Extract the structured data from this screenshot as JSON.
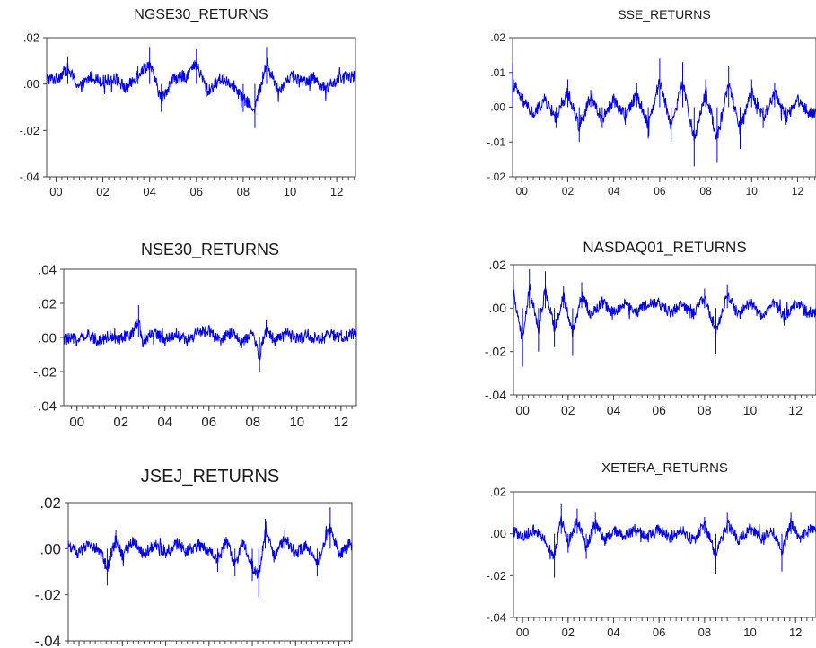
{
  "chart_data": [
    {
      "type": "line",
      "title": "NGSE30_RETURNS",
      "xlabel": "",
      "ylabel": "",
      "x_range": [
        1999.6,
        2012.8
      ],
      "ylim": [
        -0.04,
        0.02
      ],
      "x_ticks": [
        {
          "x": 2000,
          "label": "00"
        },
        {
          "x": 2002,
          "label": "02"
        },
        {
          "x": 2004,
          "label": "04"
        },
        {
          "x": 2006,
          "label": "06"
        },
        {
          "x": 2008,
          "label": "08"
        },
        {
          "x": 2010,
          "label": "10"
        },
        {
          "x": 2012,
          "label": "12"
        }
      ],
      "y_ticks": [
        {
          "y": 0.02,
          "label": ".02"
        },
        {
          "y": 0.0,
          "label": ".00"
        },
        {
          "y": -0.02,
          "label": "-.02"
        },
        {
          "y": -0.04,
          "label": "-.04"
        }
      ],
      "grid": false,
      "line_color": "#0000ee",
      "series": [
        {
          "x": [
            2000.0,
            2000.5,
            2001.0,
            2001.5,
            2002.0,
            2002.5,
            2003.0,
            2003.5,
            2004.0,
            2004.5,
            2005.0,
            2005.5,
            2006.0,
            2006.5,
            2007.0,
            2007.5,
            2008.0,
            2008.5,
            2009.0,
            2009.5,
            2010.0,
            2010.5,
            2011.0,
            2011.5,
            2012.0,
            2012.5
          ],
          "y": [
            0.004,
            0.012,
            -0.003,
            0.006,
            0.002,
            0.005,
            -0.004,
            0.008,
            0.016,
            -0.012,
            0.004,
            0.006,
            0.015,
            -0.006,
            0.004,
            0.001,
            -0.012,
            -0.019,
            0.016,
            -0.005,
            0.006,
            0.002,
            0.005,
            -0.004,
            0.003,
            0.006
          ]
        }
      ]
    },
    {
      "type": "line",
      "title": "SSE_RETURNS",
      "xlabel": "",
      "ylabel": "",
      "x_range": [
        1999.6,
        2012.8
      ],
      "ylim": [
        -0.02,
        0.02
      ],
      "x_ticks": [
        {
          "x": 2000,
          "label": "00"
        },
        {
          "x": 2002,
          "label": "02"
        },
        {
          "x": 2004,
          "label": "04"
        },
        {
          "x": 2006,
          "label": "06"
        },
        {
          "x": 2008,
          "label": "08"
        },
        {
          "x": 2010,
          "label": "10"
        },
        {
          "x": 2012,
          "label": "12"
        }
      ],
      "y_ticks": [
        {
          "y": 0.02,
          "label": ".02"
        },
        {
          "y": 0.01,
          "label": ".01"
        },
        {
          "y": 0.0,
          "label": ".00"
        },
        {
          "y": -0.01,
          "label": "-.01"
        },
        {
          "y": -0.02,
          "label": "-.02"
        }
      ],
      "grid": false,
      "line_color": "#0000ee",
      "series": [
        {
          "x": [
            1999.6,
            2000.0,
            2000.5,
            2001.0,
            2001.5,
            2002.0,
            2002.5,
            2003.0,
            2003.5,
            2004.0,
            2004.5,
            2005.0,
            2005.5,
            2006.0,
            2006.5,
            2007.0,
            2007.5,
            2008.0,
            2008.5,
            2009.0,
            2009.5,
            2010.0,
            2010.5,
            2011.0,
            2011.5,
            2012.0,
            2012.5
          ],
          "y": [
            0.013,
            0.004,
            -0.004,
            0.004,
            -0.006,
            0.008,
            -0.01,
            0.005,
            -0.006,
            0.004,
            -0.005,
            0.007,
            -0.009,
            0.014,
            -0.01,
            0.013,
            -0.017,
            0.008,
            -0.016,
            0.012,
            -0.012,
            0.008,
            -0.006,
            0.007,
            -0.005,
            0.004,
            -0.003
          ]
        }
      ]
    },
    {
      "type": "line",
      "title": "NSE30_RETURNS",
      "xlabel": "",
      "ylabel": "",
      "x_range": [
        1999.4,
        2012.7
      ],
      "ylim": [
        -0.04,
        0.04
      ],
      "x_ticks": [
        {
          "x": 2000,
          "label": "00"
        },
        {
          "x": 2002,
          "label": "02"
        },
        {
          "x": 2004,
          "label": "04"
        },
        {
          "x": 2006,
          "label": "06"
        },
        {
          "x": 2008,
          "label": "08"
        },
        {
          "x": 2010,
          "label": "10"
        },
        {
          "x": 2012,
          "label": "12"
        }
      ],
      "y_ticks": [
        {
          "y": 0.04,
          "label": ".04"
        },
        {
          "y": 0.02,
          "label": ".02"
        },
        {
          "y": 0.0,
          "label": ".00"
        },
        {
          "y": -0.02,
          "label": "-.02"
        },
        {
          "y": -0.04,
          "label": "-.04"
        }
      ],
      "grid": false,
      "line_color": "#0000ee",
      "series": [
        {
          "x": [
            2000.0,
            2000.5,
            2001.0,
            2001.5,
            2002.0,
            2002.5,
            2002.8,
            2003.0,
            2003.5,
            2004.0,
            2004.5,
            2005.0,
            2005.5,
            2006.0,
            2006.5,
            2007.0,
            2007.5,
            2008.0,
            2008.3,
            2008.6,
            2009.0,
            2009.5,
            2010.0,
            2010.5,
            2011.0,
            2011.5,
            2012.0,
            2012.5
          ],
          "y": [
            -0.002,
            0.002,
            -0.003,
            0.002,
            -0.002,
            0.004,
            0.019,
            -0.006,
            0.006,
            -0.003,
            0.004,
            -0.004,
            0.005,
            0.008,
            -0.005,
            0.006,
            -0.006,
            0.004,
            -0.02,
            0.01,
            -0.004,
            0.004,
            -0.002,
            0.003,
            -0.003,
            0.003,
            -0.001,
            0.004
          ]
        }
      ]
    },
    {
      "type": "line",
      "title": "NASDAQ01_RETURNS",
      "xlabel": "",
      "ylabel": "",
      "x_range": [
        1999.6,
        2012.9
      ],
      "ylim": [
        -0.04,
        0.02
      ],
      "x_ticks": [
        {
          "x": 2000,
          "label": "00"
        },
        {
          "x": 2002,
          "label": "02"
        },
        {
          "x": 2004,
          "label": "04"
        },
        {
          "x": 2006,
          "label": "06"
        },
        {
          "x": 2008,
          "label": "08"
        },
        {
          "x": 2010,
          "label": "10"
        },
        {
          "x": 2012,
          "label": "12"
        }
      ],
      "y_ticks": [
        {
          "y": 0.02,
          "label": ".02"
        },
        {
          "y": 0.0,
          "label": ".00"
        },
        {
          "y": -0.02,
          "label": "-.02"
        },
        {
          "y": -0.04,
          "label": "-.04"
        }
      ],
      "grid": false,
      "line_color": "#0000ee",
      "series": [
        {
          "x": [
            1999.6,
            2000.0,
            2000.3,
            2000.7,
            2001.0,
            2001.4,
            2001.8,
            2002.2,
            2002.6,
            2003.0,
            2003.5,
            2004.0,
            2004.5,
            2005.0,
            2005.5,
            2006.0,
            2006.5,
            2007.0,
            2007.5,
            2008.0,
            2008.5,
            2009.0,
            2009.5,
            2010.0,
            2010.5,
            2011.0,
            2011.5,
            2012.0,
            2012.5
          ],
          "y": [
            0.012,
            -0.027,
            0.018,
            -0.02,
            0.017,
            -0.018,
            0.01,
            -0.022,
            0.012,
            -0.006,
            0.005,
            -0.004,
            0.003,
            -0.003,
            0.003,
            0.004,
            -0.004,
            0.003,
            -0.005,
            0.009,
            -0.021,
            0.011,
            -0.006,
            0.005,
            -0.007,
            0.006,
            -0.008,
            0.004,
            -0.003
          ]
        }
      ]
    },
    {
      "type": "line",
      "title": "JSEJ_RETURNS",
      "xlabel": "",
      "ylabel": "",
      "x_range": [
        1999.5,
        2012.6
      ],
      "ylim": [
        -0.04,
        0.02
      ],
      "x_ticks": [
        {
          "x": 2000,
          "label": "00"
        },
        {
          "x": 2002,
          "label": "02"
        },
        {
          "x": 2004,
          "label": "04"
        },
        {
          "x": 2006,
          "label": "06"
        },
        {
          "x": 2008,
          "label": "08"
        },
        {
          "x": 2010,
          "label": "10"
        },
        {
          "x": 2012,
          "label": "12"
        }
      ],
      "y_ticks": [
        {
          "y": 0.02,
          "label": ".02"
        },
        {
          "y": 0.0,
          "label": ".00"
        },
        {
          "y": -0.02,
          "label": "-.02"
        },
        {
          "y": -0.04,
          "label": "-.04"
        }
      ],
      "grid": false,
      "line_color": "#0000ee",
      "series": [
        {
          "x": [
            1999.5,
            2000.0,
            2000.5,
            2001.0,
            2001.3,
            2001.7,
            2002.0,
            2002.5,
            2003.0,
            2003.5,
            2004.0,
            2004.5,
            2005.0,
            2005.5,
            2006.0,
            2006.4,
            2006.8,
            2007.2,
            2007.6,
            2008.0,
            2008.3,
            2008.6,
            2009.0,
            2009.5,
            2010.0,
            2010.5,
            2011.0,
            2011.3,
            2011.6,
            2012.0,
            2012.5
          ],
          "y": [
            0.003,
            -0.004,
            0.004,
            -0.003,
            -0.016,
            0.008,
            -0.005,
            0.006,
            -0.004,
            0.003,
            -0.003,
            0.004,
            -0.002,
            0.003,
            -0.002,
            -0.01,
            0.006,
            -0.012,
            0.005,
            -0.014,
            -0.021,
            0.013,
            -0.006,
            0.008,
            -0.004,
            0.004,
            -0.012,
            0.004,
            0.018,
            -0.005,
            0.003
          ]
        }
      ]
    },
    {
      "type": "line",
      "title": "XETERA_RETURNS",
      "xlabel": "",
      "ylabel": "",
      "x_range": [
        1999.6,
        2012.9
      ],
      "ylim": [
        -0.04,
        0.02
      ],
      "x_ticks": [
        {
          "x": 2000,
          "label": "00"
        },
        {
          "x": 2002,
          "label": "02"
        },
        {
          "x": 2004,
          "label": "04"
        },
        {
          "x": 2006,
          "label": "06"
        },
        {
          "x": 2008,
          "label": "08"
        },
        {
          "x": 2010,
          "label": "10"
        },
        {
          "x": 2012,
          "label": "12"
        }
      ],
      "y_ticks": [
        {
          "y": 0.02,
          "label": ".02"
        },
        {
          "y": 0.0,
          "label": ".00"
        },
        {
          "y": -0.02,
          "label": "-.02"
        },
        {
          "y": -0.04,
          "label": "-.04"
        }
      ],
      "grid": false,
      "line_color": "#0000ee",
      "series": [
        {
          "x": [
            1999.6,
            2000.0,
            2000.5,
            2001.0,
            2001.4,
            2001.7,
            2002.0,
            2002.4,
            2002.8,
            2003.2,
            2003.6,
            2004.0,
            2004.5,
            2005.0,
            2005.5,
            2006.0,
            2006.5,
            2007.0,
            2007.5,
            2008.0,
            2008.5,
            2009.0,
            2009.5,
            2010.0,
            2010.5,
            2011.0,
            2011.4,
            2011.8,
            2012.2,
            2012.6
          ],
          "y": [
            0.002,
            -0.003,
            0.004,
            -0.005,
            -0.021,
            0.014,
            -0.009,
            0.012,
            -0.012,
            0.01,
            -0.006,
            0.003,
            -0.002,
            0.003,
            -0.003,
            0.004,
            -0.004,
            0.003,
            -0.006,
            0.008,
            -0.019,
            0.01,
            -0.007,
            0.005,
            -0.004,
            0.003,
            -0.018,
            0.01,
            -0.005,
            0.004
          ]
        }
      ]
    }
  ]
}
